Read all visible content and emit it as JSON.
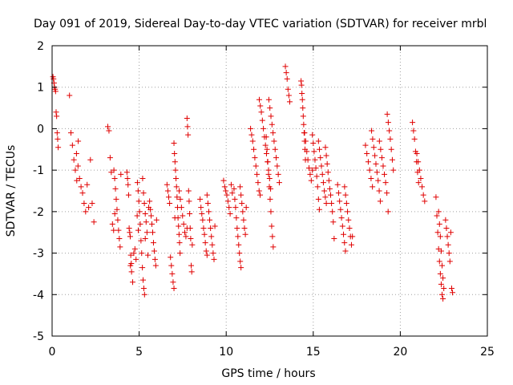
{
  "chart_data": {
    "type": "scatter",
    "title": "Day 091 of 2019, Sidereal Day-to-day VTEC variation (SDTVAR) for receiver mrbl",
    "xlabel": "GPS time / hours",
    "ylabel": "SDTVAR / TECUs",
    "xlim": [
      0,
      25
    ],
    "ylim": [
      -5,
      2
    ],
    "x_ticks": [
      0,
      5,
      10,
      15,
      20,
      25
    ],
    "y_ticks": [
      -5,
      -4,
      -3,
      -2,
      -1,
      0,
      1,
      2
    ],
    "grid": true,
    "legend": "none",
    "marker": "+",
    "marker_color": "#e00000",
    "series": [
      {
        "name": "SDTVAR",
        "segments": [
          {
            "x_start": 0.05,
            "x_end": 0.35,
            "points": [
              1.25,
              1.2,
              1.1,
              1.0,
              0.95,
              0.9,
              0.4,
              0.3,
              -0.1,
              -0.25,
              -0.45
            ]
          },
          {
            "x_start": 1.0,
            "x_end": 1.5,
            "points": [
              0.8,
              -0.1,
              -0.4,
              -0.75,
              -1.0,
              -1.25,
              -0.3
            ]
          },
          {
            "x_start": 1.4,
            "x_end": 2.1,
            "points": [
              -0.6,
              -0.9,
              -1.2,
              -1.4,
              -1.55,
              -1.8,
              -2.0,
              -1.35,
              -1.9
            ]
          },
          {
            "x_start": 2.2,
            "x_end": 2.4,
            "points": [
              -0.75,
              -1.8,
              -2.25
            ]
          },
          {
            "x_start": 3.2,
            "x_end": 3.6,
            "points": [
              0.05,
              -0.05,
              -0.7,
              -1.05,
              -2.3,
              -2.45,
              -2.05
            ]
          },
          {
            "x_start": 3.55,
            "x_end": 3.95,
            "points": [
              -1.0,
              -1.2,
              -1.45,
              -1.7,
              -1.95,
              -2.2,
              -2.45,
              -2.65,
              -2.85,
              -1.1
            ]
          },
          {
            "x_start": 4.3,
            "x_end": 4.55,
            "points": [
              -1.05,
              -1.2,
              -1.35,
              -1.6,
              -2.4,
              -2.5,
              -2.6,
              -3.05,
              -3.25
            ]
          },
          {
            "x_start": 4.5,
            "x_end": 4.95,
            "points": [
              -3.3,
              -3.45,
              -3.7,
              -3.0,
              -2.9,
              -3.15,
              -2.1,
              -2.45
            ]
          },
          {
            "x_start": 4.9,
            "x_end": 5.35,
            "points": [
              -1.3,
              -1.5,
              -1.75,
              -2.0,
              -2.3,
              -2.7,
              -3.0,
              -3.35,
              -3.65,
              -3.85,
              -4.0,
              -2.65
            ]
          },
          {
            "x_start": 5.2,
            "x_end": 5.55,
            "points": [
              -1.2,
              -1.55,
              -1.8,
              -2.05,
              -2.25,
              -2.5,
              -3.05,
              -1.9
            ]
          },
          {
            "x_start": 5.6,
            "x_end": 6.0,
            "points": [
              -1.75,
              -1.95,
              -2.1,
              -2.3,
              -2.5,
              -2.75,
              -2.95,
              -3.15,
              -3.3,
              -2.2
            ]
          },
          {
            "x_start": 6.6,
            "x_end": 7.05,
            "points": [
              -1.35,
              -1.5,
              -1.65,
              -1.8,
              -3.1,
              -3.3,
              -3.5,
              -3.7,
              -3.85,
              -2.15
            ]
          },
          {
            "x_start": 7.0,
            "x_end": 7.35,
            "points": [
              -0.35,
              -0.6,
              -0.8,
              -1.0,
              -1.2,
              -1.4,
              -1.65,
              -1.9,
              -2.15,
              -2.35,
              -2.55,
              -2.75,
              -3.0
            ]
          },
          {
            "x_start": 7.3,
            "x_end": 7.75,
            "points": [
              -1.5,
              -1.7,
              -1.9,
              -2.1,
              -2.3,
              -2.5,
              -2.6,
              -2.4
            ]
          },
          {
            "x_start": 7.75,
            "x_end": 8.05,
            "points": [
              0.25,
              0.05,
              -0.15,
              -1.5,
              -1.75,
              -2.05,
              -2.4,
              -2.65,
              -3.3,
              -3.45,
              -2.8
            ]
          },
          {
            "x_start": 8.5,
            "x_end": 8.9,
            "points": [
              -1.7,
              -1.9,
              -2.05,
              -2.2,
              -2.4,
              -2.55,
              -2.75,
              -2.95,
              -3.05
            ]
          },
          {
            "x_start": 8.9,
            "x_end": 9.35,
            "points": [
              -1.6,
              -1.8,
              -2.0,
              -2.2,
              -2.4,
              -2.6,
              -2.8,
              -3.0,
              -3.15,
              -2.35
            ]
          },
          {
            "x_start": 9.85,
            "x_end": 10.35,
            "points": [
              -1.25,
              -1.4,
              -1.5,
              -1.6,
              -1.75,
              -1.9,
              -2.05,
              -1.35,
              -1.55
            ]
          },
          {
            "x_start": 10.45,
            "x_end": 10.85,
            "points": [
              -1.45,
              -1.7,
              -1.9,
              -2.15,
              -2.4,
              -2.6,
              -2.8,
              -3.0,
              -3.2,
              -3.35
            ]
          },
          {
            "x_start": 10.8,
            "x_end": 11.15,
            "points": [
              -1.4,
              -1.6,
              -1.8,
              -2.0,
              -2.2,
              -2.4,
              -2.55,
              -1.9
            ]
          },
          {
            "x_start": 11.4,
            "x_end": 11.95,
            "points": [
              0.0,
              -0.15,
              -0.3,
              -0.5,
              -0.7,
              -0.9,
              -1.1,
              -1.3,
              -1.5,
              -1.6
            ]
          },
          {
            "x_start": 11.9,
            "x_end": 12.55,
            "points": [
              0.7,
              0.55,
              0.4,
              0.2,
              0.0,
              -0.2,
              -0.4,
              -0.6,
              -0.8,
              -1.0,
              -1.2,
              -1.45
            ]
          },
          {
            "x_start": 12.3,
            "x_end": 12.7,
            "points": [
              -0.2,
              -0.5,
              -0.8,
              -1.1,
              -1.4,
              -1.7,
              -2.0,
              -2.35,
              -2.6,
              -2.85
            ]
          },
          {
            "x_start": 12.45,
            "x_end": 13.05,
            "points": [
              0.7,
              0.5,
              0.3,
              0.1,
              -0.1,
              -0.3,
              -0.5,
              -0.7,
              -0.9,
              -1.1,
              -1.3
            ]
          },
          {
            "x_start": 13.4,
            "x_end": 13.65,
            "points": [
              1.5,
              1.35,
              1.2,
              0.95,
              0.8,
              0.65
            ]
          },
          {
            "x_start": 14.3,
            "x_end": 14.55,
            "points": [
              1.15,
              1.05,
              0.85,
              0.7,
              0.5,
              0.3,
              0.1,
              -0.1,
              -0.3,
              -0.5,
              -0.75
            ]
          },
          {
            "x_start": 14.5,
            "x_end": 14.95,
            "points": [
              -0.1,
              -0.3,
              -0.55,
              -0.75,
              -0.95,
              -1.1,
              -1.25,
              -1.0
            ]
          },
          {
            "x_start": 14.95,
            "x_end": 15.35,
            "points": [
              -0.15,
              -0.35,
              -0.55,
              -0.75,
              -0.95,
              -1.15,
              -1.4,
              -1.7,
              -1.95
            ]
          },
          {
            "x_start": 15.3,
            "x_end": 15.75,
            "points": [
              -0.3,
              -0.5,
              -0.7,
              -0.9,
              -1.1,
              -1.3,
              -1.5,
              -1.65,
              -1.8
            ]
          },
          {
            "x_start": 15.7,
            "x_end": 16.2,
            "points": [
              -0.45,
              -0.65,
              -0.85,
              -1.05,
              -1.25,
              -1.45,
              -1.6,
              -1.8,
              -2.0,
              -2.25,
              -2.65
            ]
          },
          {
            "x_start": 16.4,
            "x_end": 16.85,
            "points": [
              -1.35,
              -1.55,
              -1.75,
              -1.95,
              -2.15,
              -2.35,
              -2.55,
              -2.75,
              -2.95
            ]
          },
          {
            "x_start": 16.8,
            "x_end": 17.25,
            "points": [
              -1.4,
              -1.6,
              -1.8,
              -2.0,
              -2.2,
              -2.4,
              -2.6,
              -2.8,
              -2.6
            ]
          },
          {
            "x_start": 18.0,
            "x_end": 18.4,
            "points": [
              -0.4,
              -0.6,
              -0.8,
              -1.0,
              -1.2,
              -1.4
            ]
          },
          {
            "x_start": 18.35,
            "x_end": 18.85,
            "points": [
              -0.05,
              -0.25,
              -0.45,
              -0.65,
              -0.85,
              -1.05,
              -1.25,
              -1.5,
              -1.75
            ]
          },
          {
            "x_start": 18.8,
            "x_end": 19.3,
            "points": [
              -0.3,
              -0.5,
              -0.7,
              -0.9,
              -1.1,
              -1.3,
              -1.55,
              -2.0
            ]
          },
          {
            "x_start": 19.25,
            "x_end": 19.6,
            "points": [
              0.35,
              0.15,
              -0.05,
              -0.25,
              -0.5,
              -0.75,
              -1.0
            ]
          },
          {
            "x_start": 20.7,
            "x_end": 21.05,
            "points": [
              0.15,
              -0.05,
              -0.25,
              -0.55,
              -0.8,
              -1.05,
              -1.3
            ]
          },
          {
            "x_start": 20.95,
            "x_end": 21.4,
            "points": [
              -0.6,
              -0.8,
              -1.0,
              -1.2,
              -1.4,
              -1.6,
              -1.75
            ]
          },
          {
            "x_start": 22.05,
            "x_end": 22.45,
            "points": [
              -1.65,
              -2.1,
              -2.5,
              -2.9,
              -3.2,
              -3.5,
              -3.75,
              -4.0,
              -4.1
            ]
          },
          {
            "x_start": 22.2,
            "x_end": 22.5,
            "points": [
              -2.0,
              -2.3,
              -2.6,
              -2.95,
              -3.3,
              -3.6,
              -3.85
            ]
          },
          {
            "x_start": 22.6,
            "x_end": 23.0,
            "points": [
              -2.2,
              -2.4,
              -2.6,
              -2.8,
              -3.0,
              -3.2,
              -2.5,
              -3.85,
              -3.95
            ]
          }
        ]
      }
    ]
  }
}
